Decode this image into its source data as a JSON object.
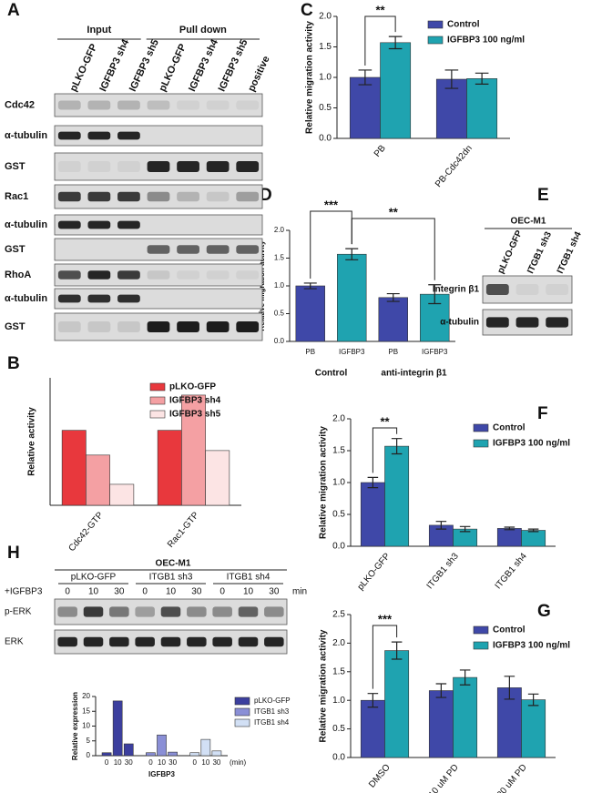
{
  "chart_data": [
    {
      "type": "bar",
      "label": "B",
      "ylabel": "Relative activity",
      "categories": [
        "Cdc42-GTP",
        "Rac1-GTP"
      ],
      "series": [
        {
          "name": "pLKO-GFP",
          "color": "#e8383d",
          "values": [
            1.0,
            1.0
          ]
        },
        {
          "name": "IGFBP3 sh4",
          "color": "#f4a0a3",
          "values": [
            0.67,
            1.47
          ]
        },
        {
          "name": "IGFBP3 sh5",
          "color": "#fce4e4",
          "values": [
            0.28,
            0.73
          ]
        }
      ],
      "ylim": [
        0,
        1.7
      ],
      "legend": "top-right"
    },
    {
      "type": "bar",
      "label": "C",
      "ylabel": "Relative migration activity",
      "categories": [
        "PB",
        "PB-Cdc42dn"
      ],
      "series": [
        {
          "name": "Control",
          "color": "#3f48a8",
          "values": [
            1.0,
            0.97
          ],
          "errors": [
            0.12,
            0.15
          ]
        },
        {
          "name": "IGFBP3 100 ng/ml",
          "color": "#1fa3b0",
          "values": [
            1.57,
            0.98
          ],
          "errors": [
            0.1,
            0.09
          ]
        }
      ],
      "ylim": [
        0,
        2
      ],
      "yticks": [
        {
          "value": 0,
          "label": "0.0"
        },
        0.5,
        {
          "value": 1,
          "label": "1.0"
        },
        1.5,
        {
          "value": 2,
          "label": "2.0"
        }
      ],
      "annotations": [
        "**"
      ],
      "legend": "top-right"
    },
    {
      "type": "bar",
      "label": "D",
      "ylabel": "Relative migration activity",
      "categories": [
        "PB",
        "IGFBP3",
        "PB",
        "IGFBP3"
      ],
      "values": [
        1.0,
        1.57,
        0.79,
        0.85
      ],
      "errors": [
        0.05,
        0.1,
        0.07,
        0.17
      ],
      "colors": [
        "#3f48a8",
        "#1fa3b0",
        "#3f48a8",
        "#1fa3b0"
      ],
      "group_labels": [
        "Control",
        "anti-integrin β1"
      ],
      "ylim": [
        0,
        2
      ],
      "yticks": [
        {
          "value": 0,
          "label": "0.0"
        },
        0.5,
        {
          "value": 1,
          "label": "1.0"
        },
        1.5,
        {
          "value": 2,
          "label": "2.0"
        }
      ],
      "annotations": [
        "***",
        "**"
      ]
    },
    {
      "type": "bar",
      "label": "F",
      "ylabel": "Relative migration activity",
      "categories": [
        "pLKO-GFP",
        "ITGB1 sh3",
        "ITGB1 sh4"
      ],
      "series": [
        {
          "name": "Control",
          "color": "#3f48a8",
          "values": [
            1.0,
            0.33,
            0.28
          ],
          "errors": [
            0.08,
            0.06,
            0.02
          ]
        },
        {
          "name": "IGFBP3 100 ng/ml",
          "color": "#1fa3b0",
          "values": [
            1.57,
            0.27,
            0.25
          ],
          "errors": [
            0.12,
            0.04,
            0.02
          ]
        }
      ],
      "ylim": [
        0,
        2
      ],
      "yticks": [
        {
          "value": 0,
          "label": "0.0"
        },
        0.5,
        {
          "value": 1,
          "label": "1.0"
        },
        1.5,
        {
          "value": 2,
          "label": "2.0"
        }
      ],
      "annotations": [
        "**"
      ],
      "legend": "top-right"
    },
    {
      "type": "bar",
      "label": "G",
      "ylabel": "Relative migration activity",
      "categories": [
        "DMSO",
        "10 uM PD",
        "20 uM PD"
      ],
      "series": [
        {
          "name": "Control",
          "color": "#3f48a8",
          "values": [
            1.0,
            1.17,
            1.22
          ],
          "errors": [
            0.12,
            0.12,
            0.2
          ]
        },
        {
          "name": "IGFBP3 100 ng/ml",
          "color": "#1fa3b0",
          "values": [
            1.87,
            1.4,
            1.01
          ],
          "errors": [
            0.15,
            0.13,
            0.1
          ]
        }
      ],
      "ylim": [
        0,
        2.5
      ],
      "yticks": [
        {
          "value": 0,
          "label": "0.0"
        },
        0.5,
        {
          "value": 1,
          "label": "1.0"
        },
        1.5,
        {
          "value": 2,
          "label": "2.0"
        },
        2.5
      ],
      "annotations": [
        "***"
      ],
      "legend": "top-right"
    },
    {
      "type": "bar",
      "label": "H",
      "ylabel": "Relative expression",
      "xlabel": "IGFBP3",
      "x_unit": "(min)",
      "categories": [
        "0",
        "10",
        "30"
      ],
      "series": [
        {
          "name": "pLKO-GFP",
          "color": "#3c3f9e",
          "values": [
            1,
            18.5,
            4
          ]
        },
        {
          "name": "ITGB1 sh3",
          "color": "#8a8fd6",
          "values": [
            1,
            7,
            1.2
          ]
        },
        {
          "name": "ITGB1 sh4",
          "color": "#d2e0f5",
          "values": [
            1,
            5.5,
            1.6
          ]
        }
      ],
      "ylim": [
        0,
        20
      ],
      "yticks": [
        0,
        5,
        10,
        15,
        20
      ],
      "legend": "top-right"
    }
  ],
  "blots": [
    {
      "label": "A",
      "headers": [
        "Input",
        "Pull down"
      ],
      "lanes": [
        "pLKO-GFP",
        "IGFBP3 sh4",
        "IGFBP3 sh5",
        "pLKO-GFP",
        "IGFBP3 sh4",
        "IGFBP3 sh5",
        "positive"
      ],
      "rows": [
        "Cdc42",
        "α-tubulin",
        "GST",
        "Rac1",
        "α-tubulin",
        "GST",
        "RhoA",
        "α-tubulin",
        "GST"
      ]
    },
    {
      "label": "E",
      "title": "OEC-M1",
      "lanes": [
        "pLKO-GFP",
        "ITGB1 sh3",
        "ITGB1 sh4"
      ],
      "rows": [
        "Integrin β1",
        "α-tubulin"
      ]
    },
    {
      "title": "OEC-M1",
      "treatment": "+IGFBP3",
      "groups": [
        "pLKO-GFP",
        "ITGB1 sh3",
        "ITGB1 sh4"
      ],
      "times": [
        "0",
        "10",
        "30",
        "0",
        "10",
        "30",
        "0",
        "10",
        "30"
      ],
      "time_unit": "min",
      "rows": [
        "p-ERK",
        "ERK"
      ]
    }
  ]
}
